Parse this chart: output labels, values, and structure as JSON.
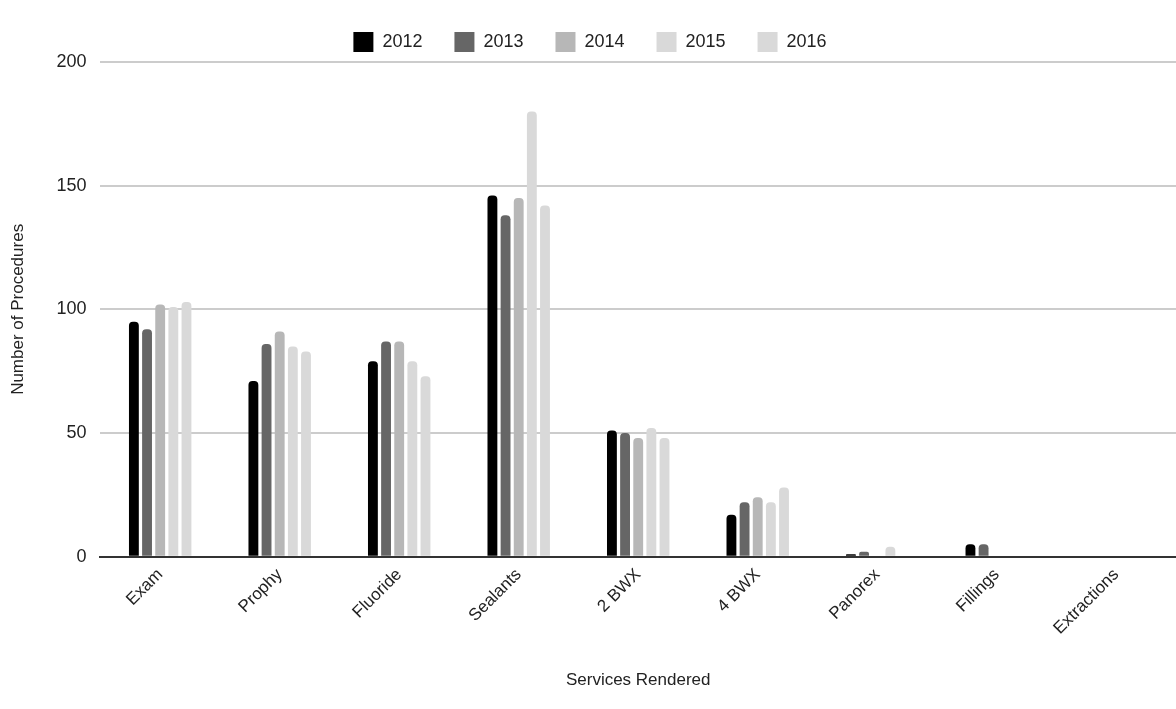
{
  "chart_data": {
    "type": "bar",
    "xlabel": "Services Rendered",
    "ylabel": "Number of Procedures",
    "categories": [
      "Exam",
      "Prophy",
      "Fluoride",
      "Sealants",
      "2 BWX",
      "4 BWX",
      "Panorex",
      "Fillings",
      "Extractions"
    ],
    "series": [
      {
        "name": "2012",
        "color": "#000000",
        "values": [
          95,
          71,
          79,
          146,
          51,
          17,
          1,
          5,
          null
        ]
      },
      {
        "name": "2013",
        "color": "#666666",
        "values": [
          92,
          86,
          87,
          138,
          50,
          22,
          2,
          5,
          0
        ]
      },
      {
        "name": "2014",
        "color": "#b7b7b7",
        "values": [
          102,
          91,
          87,
          145,
          48,
          24,
          0,
          0,
          0
        ]
      },
      {
        "name": "2015",
        "color": "#d9d9d9",
        "values": [
          101,
          85,
          79,
          180,
          52,
          22,
          4,
          null,
          null
        ]
      },
      {
        "name": "2016",
        "color": "#d9d9d9",
        "values": [
          103,
          83,
          73,
          142,
          48,
          28,
          null,
          0,
          0
        ]
      }
    ],
    "ylim": [
      0,
      200
    ],
    "yticks": [
      0,
      50,
      100,
      150,
      200
    ],
    "grid": "y",
    "legend": "top"
  }
}
